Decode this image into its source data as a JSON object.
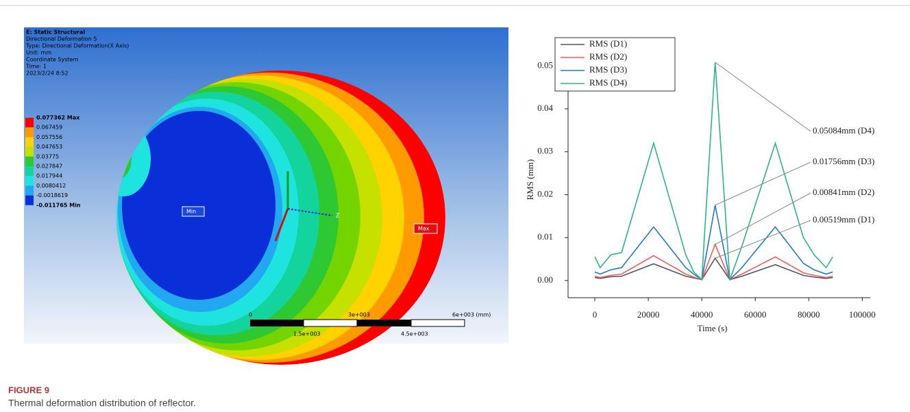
{
  "figure": {
    "label": "FIGURE 9",
    "caption": "Thermal deformation distribution of reflector."
  },
  "simulation": {
    "header": [
      "E: Static Structural",
      "Directional Deformation 5",
      "Type: Directional Deformation(X Axis)",
      "Unit: mm",
      "Coordinate System",
      "Time: 1",
      "2023/2/24 8:52"
    ],
    "legend": [
      "0.077362 Max",
      "0.067459",
      "0.057556",
      "0.047653",
      "0.03775",
      "0.027847",
      "0.017944",
      "0.0080412",
      "-0.0018619",
      "-0.011765 Min"
    ],
    "markers": {
      "min": "Min",
      "max": "Max"
    },
    "axis": "Z",
    "scale": {
      "top": [
        "0",
        "3e+003",
        "6e+003 (mm)"
      ],
      "bottom": [
        "1.5e+003",
        "4.5e+003"
      ]
    }
  },
  "chart_data": {
    "type": "line",
    "x_label": "Time (s)",
    "y_label": "RMS (mm)",
    "x": [
      0,
      2000,
      6000,
      10000,
      22000,
      34000,
      37000,
      40000,
      45000,
      50500,
      55000,
      67500,
      78000,
      82000,
      86500,
      89000
    ],
    "series": [
      {
        "name": "RMS (D1)",
        "color": "#555555",
        "values": [
          0.0007,
          0.0005,
          0.0009,
          0.001,
          0.0039,
          0.001,
          0.0006,
          0.0002,
          0.00519,
          0.0002,
          0.001,
          0.0037,
          0.0012,
          0.0008,
          0.0005,
          0.0007
        ]
      },
      {
        "name": "RMS (D2)",
        "color": "#f25c5c",
        "values": [
          0.001,
          0.0007,
          0.0012,
          0.0015,
          0.0058,
          0.0015,
          0.0008,
          0.0002,
          0.00841,
          0.0002,
          0.0015,
          0.0055,
          0.0018,
          0.0012,
          0.0007,
          0.001
        ]
      },
      {
        "name": "RMS (D3)",
        "color": "#1f78d1",
        "values": [
          0.002,
          0.0015,
          0.0025,
          0.003,
          0.0125,
          0.003,
          0.0015,
          0.0002,
          0.01756,
          0.0002,
          0.003,
          0.0125,
          0.004,
          0.0025,
          0.0015,
          0.002
        ]
      },
      {
        "name": "RMS (D4)",
        "color": "#2bb58a",
        "values": [
          0.0055,
          0.003,
          0.006,
          0.0065,
          0.032,
          0.006,
          0.002,
          0.0002,
          0.05084,
          0.0002,
          0.008,
          0.032,
          0.01,
          0.006,
          0.003,
          0.0055
        ]
      }
    ],
    "annotations": [
      "0.05084mm (D4)",
      "0.01756mm (D3)",
      "0.00841mm (D2)",
      "0.00519mm (D1)"
    ],
    "xlim": [
      -10000,
      103000
    ],
    "xticks": [
      0,
      20000,
      40000,
      60000,
      80000,
      100000
    ],
    "ylim": [
      -0.004,
      0.051
    ],
    "yticks": [
      {
        "value": 0,
        "label": "0.00"
      },
      {
        "value": 0.01,
        "label": "0.01"
      },
      {
        "value": 0.02,
        "label": "0.02"
      },
      {
        "value": 0.03,
        "label": "0.03"
      },
      {
        "value": 0.04,
        "label": "0.04"
      },
      {
        "value": 0.05,
        "label": "0.05"
      }
    ],
    "legend": "upper left"
  }
}
